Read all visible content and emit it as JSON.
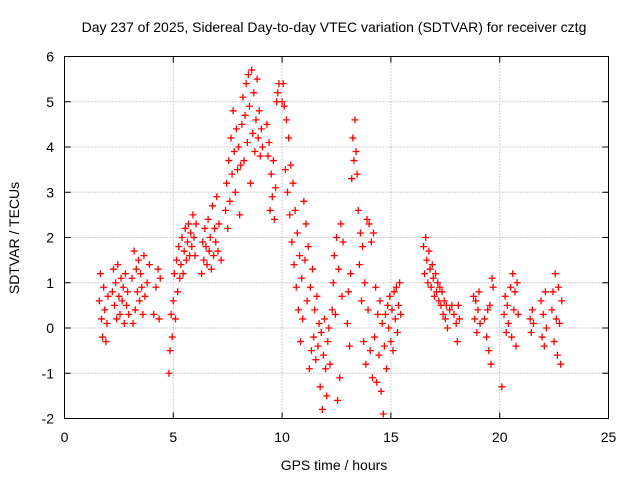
{
  "chart_data": {
    "type": "scatter",
    "title": "Day 237 of 2025, Sidereal Day-to-day VTEC variation (SDTVAR) for receiver cztg",
    "xlabel": "GPS time / hours",
    "ylabel": "SDTVAR / TECUs",
    "xlim": [
      0,
      25
    ],
    "ylim": [
      -2,
      6
    ],
    "x_ticks": [
      "0",
      "5",
      "10",
      "15",
      "20",
      "25"
    ],
    "y_ticks": [
      "-2",
      "-1",
      "0",
      "1",
      "2",
      "3",
      "4",
      "5",
      "6"
    ],
    "grid": true,
    "marker": "+",
    "color": "#ff0000",
    "series": [
      {
        "name": "SDTVAR",
        "points": [
          [
            1.6,
            0.6
          ],
          [
            1.65,
            1.2
          ],
          [
            1.7,
            0.2
          ],
          [
            1.75,
            -0.2
          ],
          [
            1.8,
            0.9
          ],
          [
            1.85,
            0.4
          ],
          [
            1.9,
            -0.3
          ],
          [
            1.95,
            0.1
          ],
          [
            2.0,
            0.7
          ],
          [
            2.2,
            0.8
          ],
          [
            2.25,
            1.3
          ],
          [
            2.3,
            0.5
          ],
          [
            2.35,
            1.0
          ],
          [
            2.4,
            0.2
          ],
          [
            2.45,
            1.4
          ],
          [
            2.5,
            0.7
          ],
          [
            2.55,
            0.3
          ],
          [
            2.6,
            1.1
          ],
          [
            2.65,
            0.6
          ],
          [
            2.7,
            0.9
          ],
          [
            2.75,
            0.1
          ],
          [
            2.8,
            1.2
          ],
          [
            2.85,
            0.5
          ],
          [
            2.9,
            0.8
          ],
          [
            2.95,
            0.3
          ],
          [
            3.1,
            1.1
          ],
          [
            3.15,
            0.1
          ],
          [
            3.2,
            1.7
          ],
          [
            3.25,
            0.4
          ],
          [
            3.3,
            1.3
          ],
          [
            3.35,
            0.8
          ],
          [
            3.4,
            1.5
          ],
          [
            3.45,
            0.6
          ],
          [
            3.5,
            1.2
          ],
          [
            3.55,
            0.9
          ],
          [
            3.6,
            0.3
          ],
          [
            3.65,
            1.6
          ],
          [
            3.7,
            0.7
          ],
          [
            3.8,
            1.0
          ],
          [
            3.9,
            1.4
          ],
          [
            4.1,
            0.3
          ],
          [
            4.2,
            0.9
          ],
          [
            4.3,
            1.3
          ],
          [
            4.35,
            0.2
          ],
          [
            4.4,
            1.1
          ],
          [
            4.8,
            -1.0
          ],
          [
            4.85,
            -0.5
          ],
          [
            4.9,
            0.3
          ],
          [
            4.95,
            -0.2
          ],
          [
            5.0,
            0.6
          ],
          [
            5.05,
            1.2
          ],
          [
            5.1,
            0.2
          ],
          [
            5.15,
            1.5
          ],
          [
            5.2,
            0.8
          ],
          [
            5.25,
            1.8
          ],
          [
            5.3,
            1.1
          ],
          [
            5.35,
            1.4
          ],
          [
            5.4,
            2.0
          ],
          [
            5.45,
            1.2
          ],
          [
            5.5,
            1.7
          ],
          [
            5.55,
            2.2
          ],
          [
            5.6,
            1.5
          ],
          [
            5.65,
            1.9
          ],
          [
            5.7,
            2.3
          ],
          [
            5.75,
            1.6
          ],
          [
            5.8,
            2.1
          ],
          [
            5.85,
            1.8
          ],
          [
            5.9,
            2.5
          ],
          [
            5.95,
            2.0
          ],
          [
            6.0,
            1.6
          ],
          [
            6.05,
            2.3
          ],
          [
            6.3,
            1.2
          ],
          [
            6.35,
            1.9
          ],
          [
            6.4,
            1.5
          ],
          [
            6.45,
            2.2
          ],
          [
            6.5,
            1.8
          ],
          [
            6.55,
            1.4
          ],
          [
            6.6,
            2.4
          ],
          [
            6.65,
            1.7
          ],
          [
            6.7,
            2.0
          ],
          [
            6.75,
            1.3
          ],
          [
            6.8,
            2.7
          ],
          [
            6.85,
            1.6
          ],
          [
            6.9,
            2.2
          ],
          [
            6.95,
            1.9
          ],
          [
            7.0,
            2.9
          ],
          [
            7.05,
            1.7
          ],
          [
            7.1,
            2.3
          ],
          [
            7.2,
            1.5
          ],
          [
            7.4,
            2.6
          ],
          [
            7.45,
            3.2
          ],
          [
            7.5,
            2.2
          ],
          [
            7.55,
            3.7
          ],
          [
            7.6,
            2.8
          ],
          [
            7.65,
            4.2
          ],
          [
            7.7,
            3.4
          ],
          [
            7.75,
            4.8
          ],
          [
            7.8,
            3.9
          ],
          [
            7.85,
            3.0
          ],
          [
            7.9,
            4.4
          ],
          [
            7.95,
            3.5
          ],
          [
            8.0,
            4.0
          ],
          [
            8.05,
            2.5
          ],
          [
            8.1,
            3.6
          ],
          [
            8.15,
            4.5
          ],
          [
            8.2,
            5.1
          ],
          [
            8.25,
            3.7
          ],
          [
            8.3,
            4.7
          ],
          [
            8.35,
            5.4
          ],
          [
            8.4,
            4.1
          ],
          [
            8.45,
            5.6
          ],
          [
            8.5,
            4.9
          ],
          [
            8.55,
            3.2
          ],
          [
            8.6,
            5.7
          ],
          [
            8.65,
            4.3
          ],
          [
            8.7,
            5.2
          ],
          [
            8.75,
            3.9
          ],
          [
            8.8,
            4.6
          ],
          [
            8.85,
            5.5
          ],
          [
            8.9,
            4.2
          ],
          [
            8.95,
            4.8
          ],
          [
            9.0,
            3.8
          ],
          [
            9.05,
            4.4
          ],
          [
            9.1,
            4.0
          ],
          [
            9.3,
            4.5
          ],
          [
            9.35,
            3.8
          ],
          [
            9.4,
            4.1
          ],
          [
            9.45,
            2.6
          ],
          [
            9.5,
            3.4
          ],
          [
            9.55,
            2.9
          ],
          [
            9.6,
            3.7
          ],
          [
            9.65,
            2.4
          ],
          [
            9.7,
            3.1
          ],
          [
            9.75,
            5.0
          ],
          [
            9.8,
            5.2
          ],
          [
            9.85,
            5.4
          ],
          [
            10.0,
            5.0
          ],
          [
            10.05,
            5.4
          ],
          [
            10.1,
            4.9
          ],
          [
            10.15,
            3.5
          ],
          [
            10.2,
            4.6
          ],
          [
            10.25,
            3.0
          ],
          [
            10.3,
            4.2
          ],
          [
            10.35,
            2.5
          ],
          [
            10.4,
            3.6
          ],
          [
            10.45,
            1.9
          ],
          [
            10.5,
            3.2
          ],
          [
            10.55,
            1.4
          ],
          [
            10.6,
            2.6
          ],
          [
            10.65,
            0.9
          ],
          [
            10.7,
            2.1
          ],
          [
            10.75,
            0.4
          ],
          [
            10.8,
            1.6
          ],
          [
            10.85,
            -0.3
          ],
          [
            10.9,
            1.1
          ],
          [
            10.95,
            0.2
          ],
          [
            11.0,
            2.8
          ],
          [
            11.05,
            1.5
          ],
          [
            11.1,
            2.3
          ],
          [
            11.15,
            0.6
          ],
          [
            11.2,
            1.8
          ],
          [
            11.25,
            -0.9
          ],
          [
            11.3,
            0.9
          ],
          [
            11.35,
            -0.5
          ],
          [
            11.4,
            1.3
          ],
          [
            11.45,
            -0.2
          ],
          [
            11.5,
            0.4
          ],
          [
            11.55,
            -0.7
          ],
          [
            11.6,
            0.7
          ],
          [
            11.65,
            -0.4
          ],
          [
            11.7,
            0.1
          ],
          [
            11.75,
            -1.3
          ],
          [
            11.8,
            -0.1
          ],
          [
            11.85,
            -1.8
          ],
          [
            11.9,
            -0.6
          ],
          [
            11.95,
            0.2
          ],
          [
            12.0,
            -0.9
          ],
          [
            12.05,
            -1.5
          ],
          [
            12.1,
            -0.3
          ],
          [
            12.15,
            0.0
          ],
          [
            12.2,
            -0.8
          ],
          [
            12.3,
            0.4
          ],
          [
            12.35,
            1.0
          ],
          [
            12.4,
            1.6
          ],
          [
            12.45,
            0.3
          ],
          [
            12.5,
            2.0
          ],
          [
            12.55,
            -1.6
          ],
          [
            12.6,
            1.3
          ],
          [
            12.65,
            -1.1
          ],
          [
            12.7,
            2.3
          ],
          [
            12.75,
            0.7
          ],
          [
            12.8,
            1.9
          ],
          [
            13.0,
            0.1
          ],
          [
            13.05,
            0.8
          ],
          [
            13.1,
            -0.4
          ],
          [
            13.15,
            1.2
          ],
          [
            13.2,
            3.3
          ],
          [
            13.25,
            4.2
          ],
          [
            13.3,
            3.7
          ],
          [
            13.35,
            4.6
          ],
          [
            13.4,
            3.9
          ],
          [
            13.45,
            3.4
          ],
          [
            13.5,
            2.6
          ],
          [
            13.55,
            1.4
          ],
          [
            13.6,
            2.1
          ],
          [
            13.65,
            0.6
          ],
          [
            13.7,
            1.8
          ],
          [
            13.75,
            -0.3
          ],
          [
            13.8,
            1.0
          ],
          [
            13.85,
            -0.8
          ],
          [
            13.9,
            2.4
          ],
          [
            13.95,
            0.4
          ],
          [
            14.0,
            2.3
          ],
          [
            14.05,
            -0.5
          ],
          [
            14.1,
            1.9
          ],
          [
            14.15,
            -1.1
          ],
          [
            14.2,
            2.1
          ],
          [
            14.25,
            -0.2
          ],
          [
            14.3,
            0.9
          ],
          [
            14.35,
            -1.2
          ],
          [
            14.4,
            0.3
          ],
          [
            14.45,
            -0.6
          ],
          [
            14.5,
            0.6
          ],
          [
            14.55,
            -1.4
          ],
          [
            14.6,
            0.1
          ],
          [
            14.65,
            -1.9
          ],
          [
            14.7,
            -0.4
          ],
          [
            14.75,
            0.3
          ],
          [
            14.8,
            -0.9
          ],
          [
            14.85,
            0.5
          ],
          [
            14.9,
            0.0
          ],
          [
            14.95,
            0.7
          ],
          [
            15.0,
            -0.3
          ],
          [
            15.05,
            0.4
          ],
          [
            15.1,
            -0.5
          ],
          [
            15.15,
            0.8
          ],
          [
            15.2,
            0.2
          ],
          [
            15.25,
            0.9
          ],
          [
            15.3,
            -0.1
          ],
          [
            15.35,
            0.5
          ],
          [
            15.4,
            1.0
          ],
          [
            15.45,
            0.3
          ],
          [
            16.5,
            1.8
          ],
          [
            16.55,
            1.2
          ],
          [
            16.6,
            2.0
          ],
          [
            16.65,
            1.5
          ],
          [
            16.7,
            1.0
          ],
          [
            16.75,
            1.7
          ],
          [
            16.8,
            1.3
          ],
          [
            16.85,
            0.9
          ],
          [
            16.9,
            1.4
          ],
          [
            16.95,
            1.1
          ],
          [
            17.0,
            0.7
          ],
          [
            17.05,
            1.2
          ],
          [
            17.1,
            0.8
          ],
          [
            17.15,
            1.0
          ],
          [
            17.2,
            0.6
          ],
          [
            17.25,
            0.9
          ],
          [
            17.3,
            0.5
          ],
          [
            17.35,
            0.8
          ],
          [
            17.4,
            0.3
          ],
          [
            17.45,
            0.6
          ],
          [
            17.5,
            0.2
          ],
          [
            17.55,
            0.5
          ],
          [
            17.6,
            0.0
          ],
          [
            17.7,
            0.4
          ],
          [
            17.8,
            0.5
          ],
          [
            17.9,
            0.3
          ],
          [
            18.0,
            0.1
          ],
          [
            18.05,
            -0.3
          ],
          [
            18.1,
            0.5
          ],
          [
            18.15,
            0.2
          ],
          [
            18.8,
            0.7
          ],
          [
            18.85,
            0.2
          ],
          [
            18.9,
            0.6
          ],
          [
            18.95,
            -0.1
          ],
          [
            19.0,
            0.4
          ],
          [
            19.05,
            0.8
          ],
          [
            19.1,
            0.1
          ],
          [
            19.3,
            0.2
          ],
          [
            19.4,
            -0.2
          ],
          [
            19.45,
            0.4
          ],
          [
            19.5,
            -0.5
          ],
          [
            19.55,
            0.5
          ],
          [
            19.6,
            -0.8
          ],
          [
            19.65,
            1.1
          ],
          [
            19.7,
            0.9
          ],
          [
            20.1,
            -1.3
          ],
          [
            20.2,
            0.3
          ],
          [
            20.25,
            0.7
          ],
          [
            20.3,
            -0.1
          ],
          [
            20.35,
            0.5
          ],
          [
            20.4,
            0.1
          ],
          [
            20.5,
            0.9
          ],
          [
            20.55,
            -0.2
          ],
          [
            20.6,
            1.2
          ],
          [
            20.65,
            0.4
          ],
          [
            20.7,
            0.8
          ],
          [
            20.75,
            -0.4
          ],
          [
            20.8,
            1.0
          ],
          [
            20.85,
            0.3
          ],
          [
            21.4,
            0.2
          ],
          [
            21.45,
            -0.1
          ],
          [
            21.5,
            0.4
          ],
          [
            21.55,
            0.1
          ],
          [
            21.9,
            0.6
          ],
          [
            21.95,
            -0.2
          ],
          [
            22.0,
            0.3
          ],
          [
            22.05,
            -0.4
          ],
          [
            22.1,
            0.8
          ],
          [
            22.15,
            0.0
          ],
          [
            22.4,
            0.4
          ],
          [
            22.45,
            0.8
          ],
          [
            22.5,
            -0.3
          ],
          [
            22.55,
            1.2
          ],
          [
            22.6,
            0.2
          ],
          [
            22.65,
            -0.6
          ],
          [
            22.7,
            0.9
          ],
          [
            22.75,
            0.1
          ],
          [
            22.8,
            -0.8
          ],
          [
            22.85,
            0.6
          ]
        ]
      }
    ]
  }
}
